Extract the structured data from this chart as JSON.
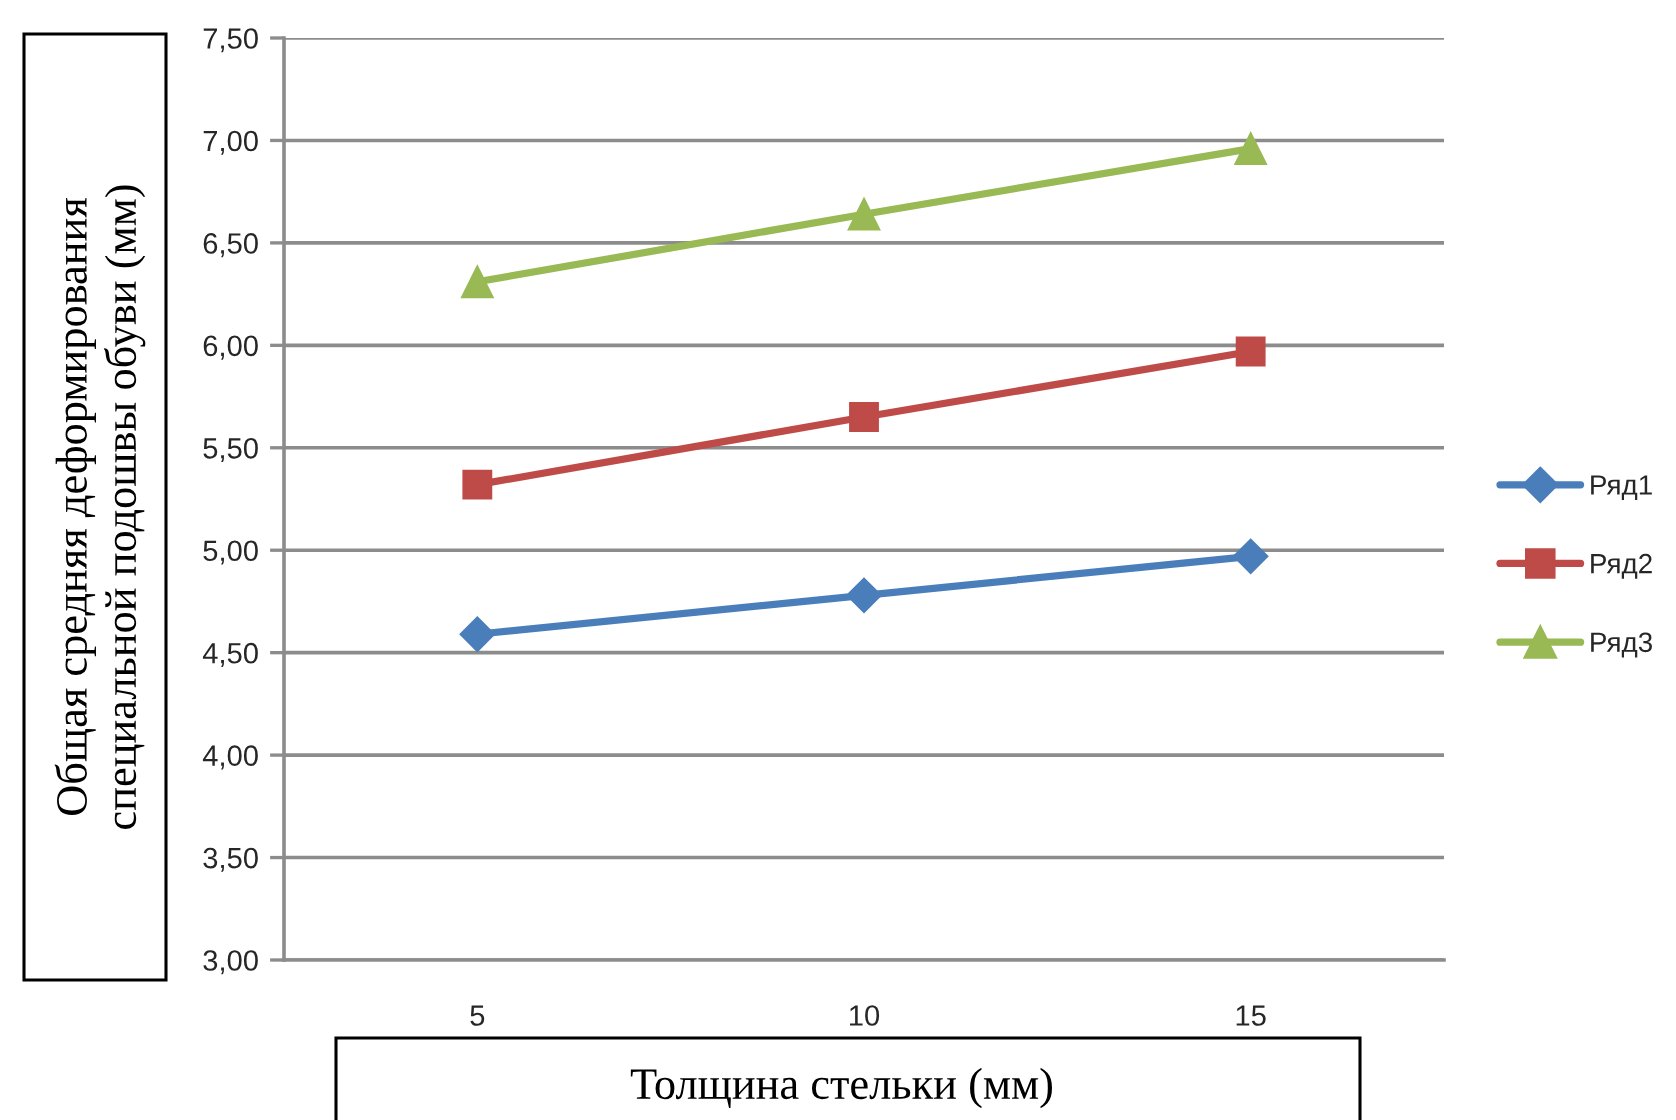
{
  "chart_data": {
    "type": "line",
    "categories": [
      "5",
      "10",
      "15"
    ],
    "xlabel": "Толщина стельки (мм)",
    "ylabel": "Общая средняя деформирования специальной подошвы обуви (мм)",
    "ylim": [
      3,
      7.5
    ],
    "yticks": [
      {
        "value": 3,
        "label": "3,00"
      },
      {
        "value": 3.5,
        "label": "3,50"
      },
      {
        "value": 4,
        "label": "4,00"
      },
      {
        "value": 4.5,
        "label": "4,50"
      },
      {
        "value": 5,
        "label": "5,00"
      },
      {
        "value": 5.5,
        "label": "5,50"
      },
      {
        "value": 6,
        "label": "6,00"
      },
      {
        "value": 6.5,
        "label": "6,50"
      },
      {
        "value": 7,
        "label": "7,00"
      },
      {
        "value": 7.5,
        "label": "7,50"
      }
    ],
    "grid": "y",
    "legend": "right",
    "line_style": "solid",
    "series": [
      {
        "name": "Ряд1",
        "color": "#4a7ebb",
        "marker": "diamond",
        "values": [
          4.59,
          4.78,
          4.97
        ]
      },
      {
        "name": "Ряд2",
        "color": "#be4b48",
        "marker": "square",
        "values": [
          5.32,
          5.65,
          5.97
        ]
      },
      {
        "name": "Ряд3",
        "color": "#98b954",
        "marker": "triangle",
        "values": [
          6.31,
          6.64,
          6.96
        ]
      }
    ]
  }
}
